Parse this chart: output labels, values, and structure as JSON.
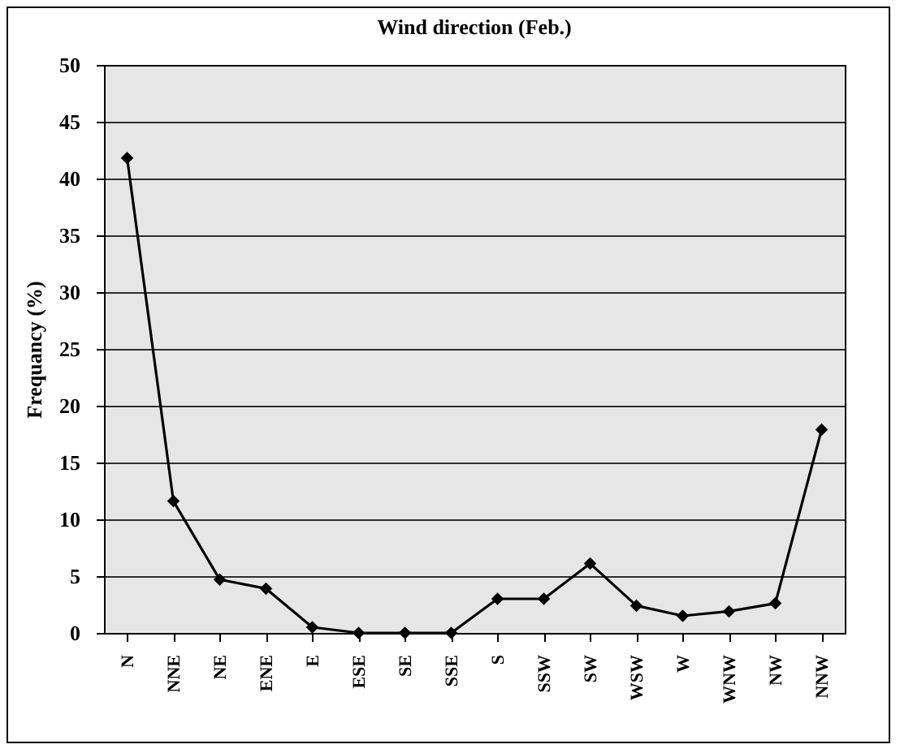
{
  "chart_data": {
    "type": "line",
    "title": "Wind direction (Feb.)",
    "ylabel": "Frequancy (%)",
    "categories": [
      "N",
      "NNE",
      "NE",
      "ENE",
      "E",
      "ESE",
      "SE",
      "SSE",
      "S",
      "SSW",
      "SW",
      "WSW",
      "W",
      "WNW",
      "NW",
      "NNW"
    ],
    "series": [
      {
        "color": "#000000",
        "values": [
          41.8,
          11.6,
          4.7,
          3.9,
          0.5,
          0,
          0,
          0,
          3,
          3,
          6.1,
          2.4,
          1.5,
          1.9,
          2.6,
          17.9
        ]
      }
    ],
    "ylim": [
      0,
      50
    ],
    "yticks": [
      0,
      5,
      10,
      15,
      20,
      25,
      30,
      35,
      40,
      45,
      50
    ],
    "grid": "y",
    "marker": "diamond",
    "line_style": "solid"
  }
}
